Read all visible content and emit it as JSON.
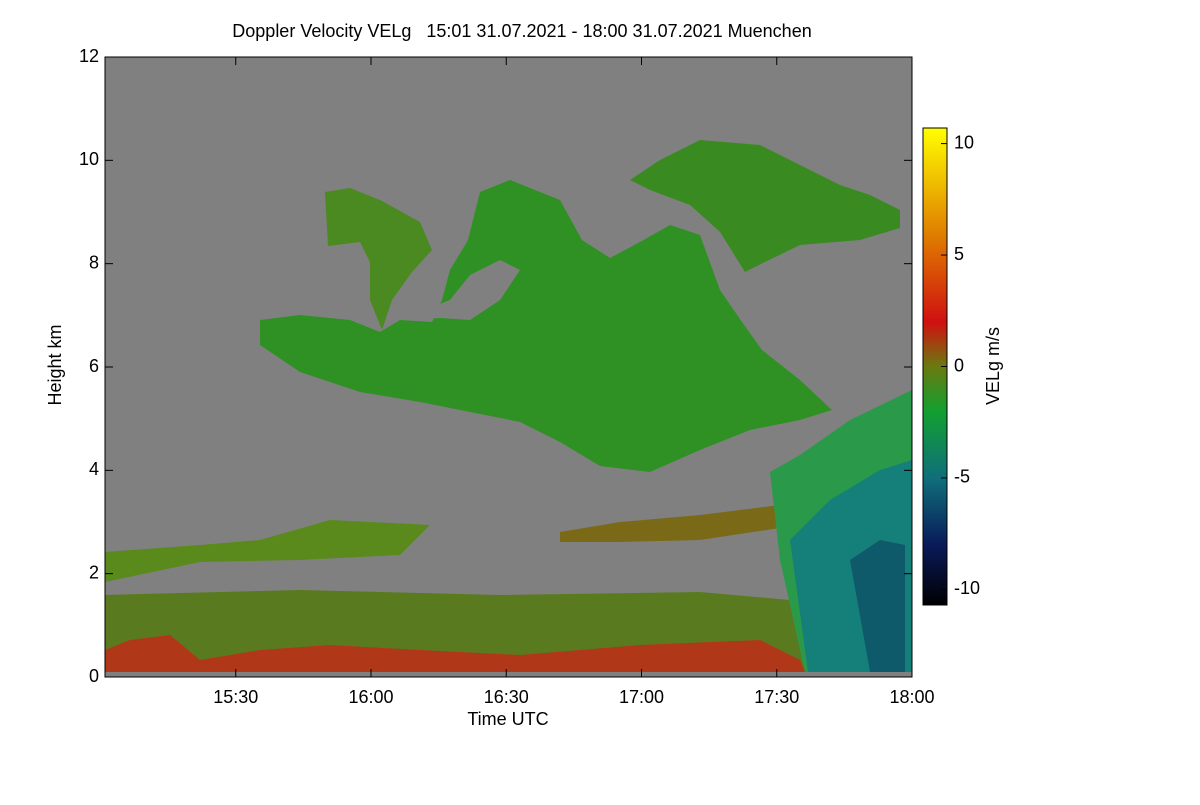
{
  "chart_data": {
    "type": "heatmap",
    "title": "Doppler Velocity VELg   15:01 31.07.2021 - 18:00 31.07.2021 Muenchen",
    "x_label": "Time UTC",
    "y_label": "Height km",
    "colorbar_label": "VELg m/s",
    "xlim": [
      901,
      1080
    ],
    "xticks": [
      {
        "value": 930,
        "label": "15:30"
      },
      {
        "value": 960,
        "label": "16:00"
      },
      {
        "value": 990,
        "label": "16:30"
      },
      {
        "value": 1020,
        "label": "17:00"
      },
      {
        "value": 1050,
        "label": "17:30"
      },
      {
        "value": 1080,
        "label": "18:00"
      }
    ],
    "ylim": [
      0,
      12
    ],
    "yticks": [
      0,
      2,
      4,
      6,
      8,
      10,
      12
    ],
    "clim": [
      -10.7,
      10.7
    ],
    "cticks": [
      -10,
      -5,
      0,
      5,
      10
    ],
    "colorscale": [
      [
        -10.7,
        "#000000"
      ],
      [
        -8,
        "#0a1a5a"
      ],
      [
        -5,
        "#0f6f7a"
      ],
      [
        -2,
        "#12a030"
      ],
      [
        0,
        "#6a7a10"
      ],
      [
        2,
        "#d01010"
      ],
      [
        6,
        "#e08000"
      ],
      [
        10.7,
        "#ffff00"
      ]
    ],
    "background": "#808080"
  }
}
